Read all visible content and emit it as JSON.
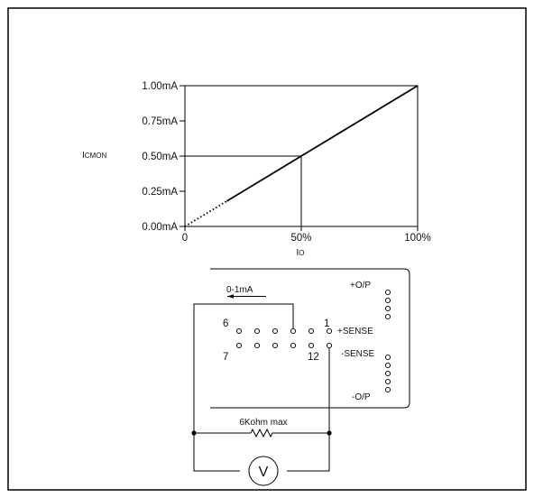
{
  "chart_data": {
    "type": "line",
    "ylabel_main": "I",
    "ylabel_sub": "CMON",
    "xlabel_main": "I",
    "xlabel_sub": "O",
    "y_ticks": [
      "0.00mA",
      "0.25mA",
      "0.50mA",
      "0.75mA",
      "1.00mA"
    ],
    "y_tick_values": [
      0,
      0.25,
      0.5,
      0.75,
      1.0
    ],
    "x_ticks": [
      "0",
      "50%",
      "100%"
    ],
    "x_tick_values": [
      0,
      50,
      100
    ],
    "xlim": [
      0,
      100
    ],
    "ylim": [
      0,
      1.0
    ],
    "series": [
      {
        "x": [
          0,
          100
        ],
        "y": [
          0,
          1.0
        ]
      }
    ],
    "dotted_segment_end_x": 18,
    "reference_point": {
      "x": 50,
      "y": 0.5
    }
  },
  "circuit": {
    "current_label": "0-1mA",
    "pin_first_top": "6",
    "pin_last_top": "1",
    "pin_first_bottom": "7",
    "pin_last_bottom": "12",
    "pos_output": "+O/P",
    "pos_sense": "+SENSE",
    "neg_sense": "-SENSE",
    "neg_output": "-O/P",
    "resistor_label": "6Kohm max",
    "meter_label": "V"
  }
}
